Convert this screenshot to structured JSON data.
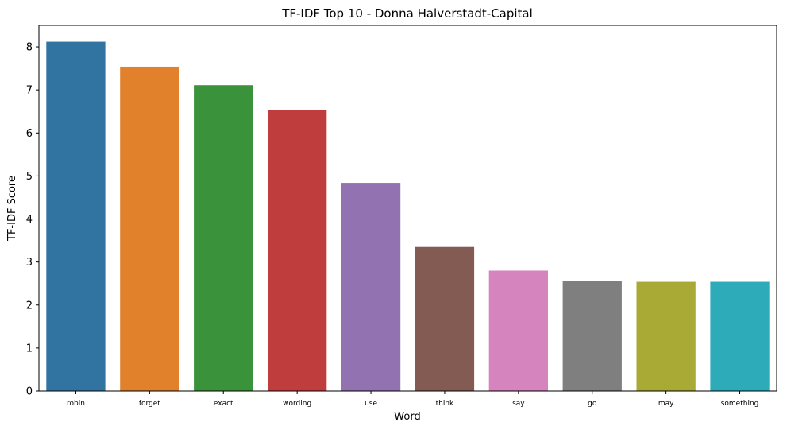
{
  "chart_data": {
    "type": "bar",
    "title": "TF-IDF Top 10 - Donna Halverstadt-Capital",
    "xlabel": "Word",
    "ylabel": "TF-IDF Score",
    "categories": [
      "robin",
      "forget",
      "exact",
      "wording",
      "use",
      "think",
      "say",
      "go",
      "may",
      "something"
    ],
    "values": [
      8.12,
      7.54,
      7.11,
      6.54,
      4.84,
      3.35,
      2.8,
      2.56,
      2.54,
      2.54
    ],
    "colors": [
      "#3274a1",
      "#e1812c",
      "#3a923a",
      "#c03d3e",
      "#9372b2",
      "#845b53",
      "#d684bd",
      "#7f7f7f",
      "#a9aa35",
      "#2eabb8"
    ],
    "ylim": [
      0,
      8.5
    ],
    "yticks": [
      0,
      1,
      2,
      3,
      4,
      5,
      6,
      7,
      8
    ],
    "grid": false,
    "legend": "none"
  }
}
